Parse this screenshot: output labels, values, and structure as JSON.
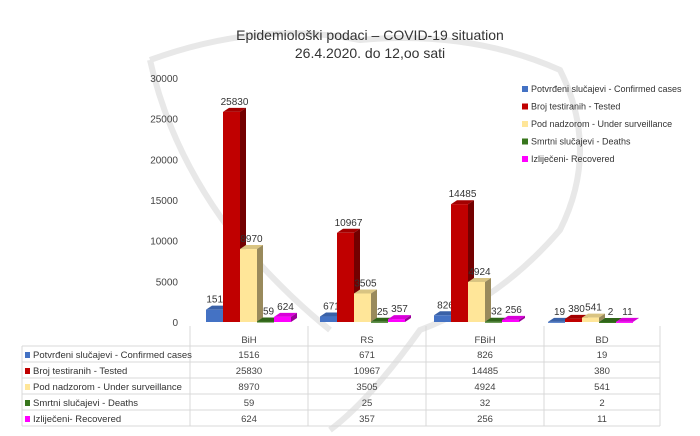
{
  "chart_data": {
    "type": "bar",
    "title": "Epidemiološki podaci – COVID-19 situation",
    "subtitle": "26.4.2020. do 12,oo sati",
    "categories": [
      "BiH",
      "RS",
      "FBiH",
      "BD"
    ],
    "series": [
      {
        "name": "Potvrđeni slučajevi - Confirmed cases",
        "color": "#4472c4",
        "values": [
          1516,
          671,
          826,
          19
        ]
      },
      {
        "name": "Broj testiranih - Tested",
        "color": "#c00000",
        "values": [
          25830,
          10967,
          14485,
          380
        ]
      },
      {
        "name": "Pod nadzorom - Under surveillance",
        "color": "#ffe699",
        "values": [
          8970,
          3505,
          4924,
          541
        ]
      },
      {
        "name": "Smrtni slučajevi - Deaths",
        "color": "#38761d",
        "values": [
          59,
          25,
          32,
          2
        ]
      },
      {
        "name": "Izliječeni- Recovered",
        "color": "#ff00ff",
        "values": [
          624,
          357,
          256,
          11
        ]
      }
    ],
    "ylim": [
      0,
      30000
    ],
    "yticks": [
      0,
      5000,
      10000,
      15000,
      20000,
      25000,
      30000
    ],
    "legend": "right",
    "data_table": true,
    "grid": false
  }
}
